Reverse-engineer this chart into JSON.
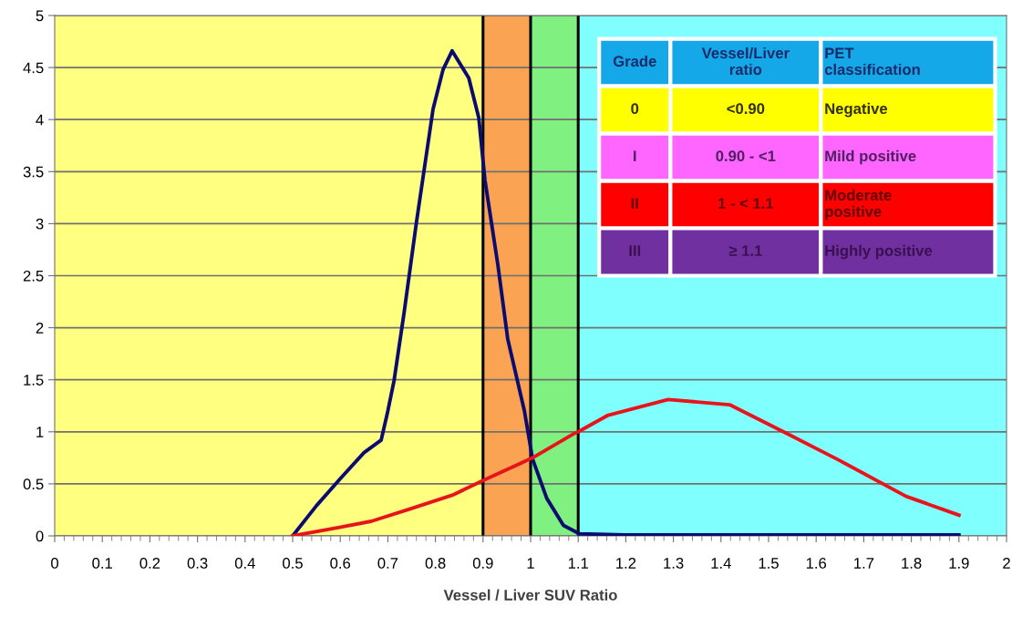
{
  "chart_data": {
    "type": "line",
    "xlabel": "Vessel / Liver SUV Ratio",
    "xlim": [
      0,
      2
    ],
    "ylim": [
      0,
      5
    ],
    "xticks": [
      0,
      0.1,
      0.2,
      0.3,
      0.4,
      0.5,
      0.6,
      0.7,
      0.8,
      0.9,
      1,
      1.1,
      1.2,
      1.3,
      1.4,
      1.5,
      1.6,
      1.7,
      1.8,
      1.9,
      2
    ],
    "yticks": [
      0,
      0.5,
      1,
      1.5,
      2,
      2.5,
      3,
      3.5,
      4,
      4.5,
      5
    ],
    "grid": "y",
    "marker": "none",
    "line_style": "solid",
    "series": [
      {
        "color": "#0c0c70",
        "x": [
          0.5,
          0.55,
          0.6,
          0.65,
          0.686,
          0.7,
          0.713,
          0.734,
          0.76,
          0.795,
          0.816,
          0.835,
          0.87,
          0.891,
          0.904,
          0.931,
          0.952,
          0.987,
          1.004,
          1.034,
          1.069,
          1.103,
          1.2,
          1.5,
          1.9
        ],
        "values": [
          0,
          0.29,
          0.55,
          0.8,
          0.92,
          1.2,
          1.49,
          2.14,
          3.01,
          4.1,
          4.48,
          4.66,
          4.4,
          4.02,
          3.42,
          2.61,
          1.89,
          1.2,
          0.74,
          0.36,
          0.1,
          0.02,
          0.01,
          0.01,
          0.01
        ]
      },
      {
        "color": "#e8141c",
        "x": [
          0.5,
          0.596,
          0.665,
          0.747,
          0.835,
          0.904,
          1.004,
          1.09,
          1.1,
          1.163,
          1.289,
          1.418,
          1.536,
          1.647,
          1.789,
          1.9
        ],
        "values": [
          0,
          0.08,
          0.14,
          0.26,
          0.39,
          0.54,
          0.75,
          0.98,
          1.0,
          1.16,
          1.31,
          1.26,
          0.99,
          0.73,
          0.38,
          0.2
        ]
      }
    ],
    "bands": [
      {
        "axis": "x",
        "from": 0,
        "to": 0.9,
        "color": "#ffff80"
      },
      {
        "axis": "x",
        "from": 0.9,
        "to": 1.0,
        "color": "#f9a353"
      },
      {
        "axis": "x",
        "from": 1.0,
        "to": 1.1,
        "color": "#80f080"
      },
      {
        "axis": "x",
        "from": 1.1,
        "to": 2,
        "color": "#80ffff"
      }
    ],
    "ref_lines": [
      {
        "axis": "x",
        "value": 0.9,
        "color": "#000000"
      },
      {
        "axis": "x",
        "value": 1.0,
        "color": "#000000"
      },
      {
        "axis": "x",
        "value": 1.1,
        "color": "#000000"
      }
    ],
    "annotations": [
      "Grade",
      "Vessel/Liver\nratio",
      "PET\nclassification",
      "0",
      "<0.90",
      "Negative",
      "I",
      "0.90 - <1",
      "Mild positive",
      "II",
      "1 - < 1.1",
      "Moderate\npositive",
      "III",
      "≥ 1.1",
      "Highly positive"
    ]
  }
}
